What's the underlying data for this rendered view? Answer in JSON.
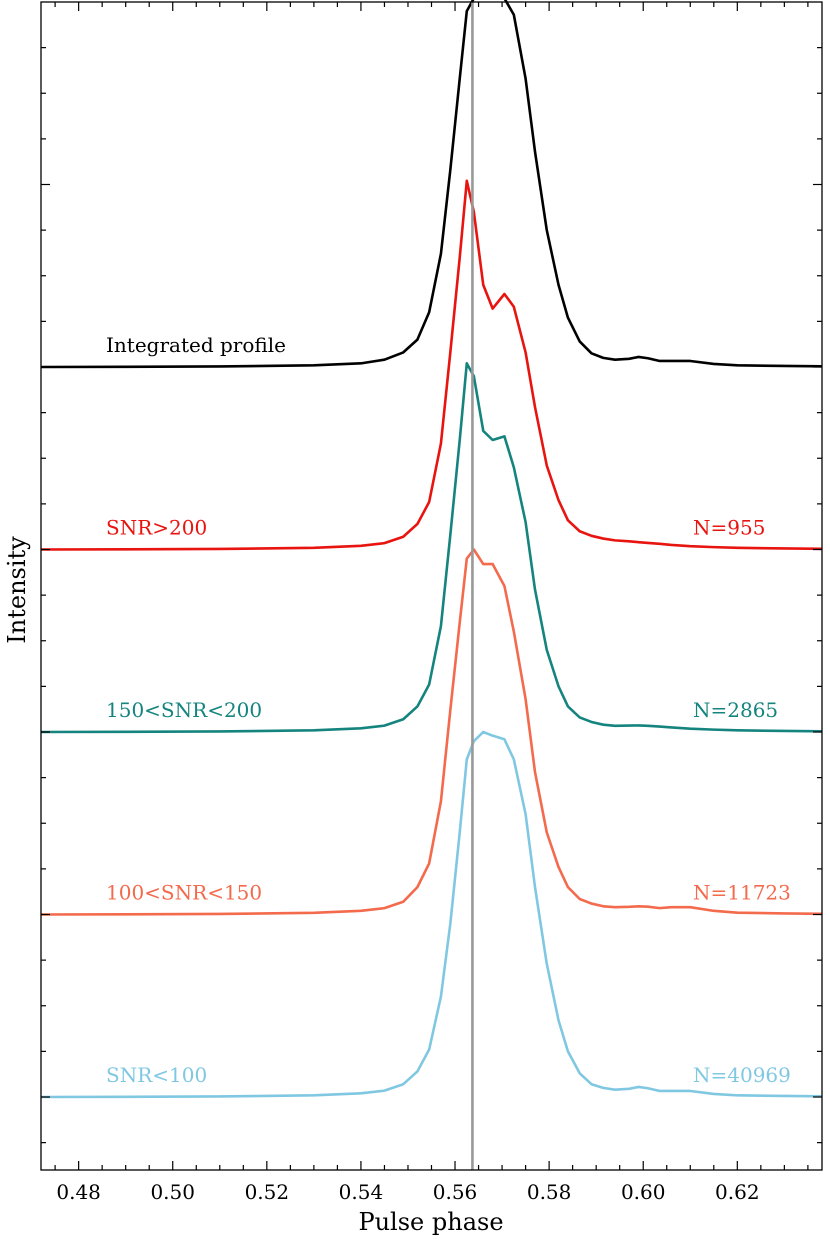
{
  "chart_data": {
    "type": "line",
    "title": "",
    "xlabel": "Pulse phase",
    "ylabel": "Intensity",
    "xlim": [
      0.472,
      0.638
    ],
    "xticks": [
      0.48,
      0.5,
      0.52,
      0.54,
      0.56,
      0.58,
      0.6,
      0.62
    ],
    "xtick_labels": [
      "0.48",
      "0.50",
      "0.52",
      "0.54",
      "0.56",
      "0.58",
      "0.60",
      "0.62"
    ],
    "ylim": [
      -0.4,
      6.0
    ],
    "grid": false,
    "reference_line": {
      "x": 0.5637,
      "color": "#999999"
    },
    "series": [
      {
        "name": "Integrated profile",
        "count_label": "",
        "color": "#000000",
        "offset": 4,
        "x": [
          0.472,
          0.49,
          0.51,
          0.53,
          0.54,
          0.545,
          0.549,
          0.552,
          0.5545,
          0.557,
          0.559,
          0.561,
          0.5625,
          0.564,
          0.566,
          0.568,
          0.5705,
          0.5725,
          0.575,
          0.577,
          0.5795,
          0.582,
          0.584,
          0.5865,
          0.589,
          0.5915,
          0.594,
          0.597,
          0.599,
          0.601,
          0.6035,
          0.606,
          0.61,
          0.615,
          0.62,
          0.63,
          0.638
        ],
        "values": [
          0,
          0.001,
          0.003,
          0.009,
          0.02,
          0.04,
          0.08,
          0.15,
          0.3,
          0.62,
          1.08,
          1.58,
          1.95,
          2.02,
          2.06,
          2.04,
          2.02,
          1.93,
          1.58,
          1.18,
          0.75,
          0.45,
          0.27,
          0.14,
          0.075,
          0.05,
          0.04,
          0.045,
          0.055,
          0.048,
          0.033,
          0.033,
          0.033,
          0.017,
          0.009,
          0.006,
          0.004
        ]
      },
      {
        "name": "SNR>200",
        "count_label": "N=955",
        "color": "#e8140f",
        "offset": 3,
        "x": [
          0.472,
          0.49,
          0.51,
          0.53,
          0.54,
          0.545,
          0.549,
          0.552,
          0.5545,
          0.557,
          0.559,
          0.561,
          0.5625,
          0.564,
          0.566,
          0.568,
          0.5705,
          0.5725,
          0.575,
          0.577,
          0.5795,
          0.582,
          0.584,
          0.5865,
          0.589,
          0.5915,
          0.594,
          0.597,
          0.599,
          0.601,
          0.6035,
          0.606,
          0.61,
          0.615,
          0.62,
          0.63,
          0.638
        ],
        "values": [
          0,
          0.001,
          0.003,
          0.009,
          0.02,
          0.035,
          0.07,
          0.14,
          0.26,
          0.58,
          1.08,
          1.6,
          2.02,
          1.85,
          1.45,
          1.32,
          1.4,
          1.33,
          1.08,
          0.78,
          0.46,
          0.27,
          0.16,
          0.1,
          0.075,
          0.06,
          0.05,
          0.045,
          0.04,
          0.036,
          0.031,
          0.025,
          0.018,
          0.013,
          0.009,
          0.006,
          0.004
        ]
      },
      {
        "name": "150<SNR<200",
        "count_label": "N=2865",
        "color": "#15847e",
        "offset": 2,
        "x": [
          0.472,
          0.49,
          0.51,
          0.53,
          0.54,
          0.545,
          0.549,
          0.552,
          0.5545,
          0.557,
          0.559,
          0.561,
          0.5625,
          0.564,
          0.566,
          0.568,
          0.5705,
          0.5725,
          0.575,
          0.577,
          0.5795,
          0.582,
          0.584,
          0.5865,
          0.589,
          0.5915,
          0.594,
          0.597,
          0.599,
          0.601,
          0.6035,
          0.606,
          0.61,
          0.615,
          0.62,
          0.63,
          0.638
        ],
        "values": [
          0,
          0.001,
          0.003,
          0.009,
          0.02,
          0.035,
          0.07,
          0.14,
          0.26,
          0.58,
          1.08,
          1.6,
          2.02,
          1.95,
          1.65,
          1.6,
          1.62,
          1.45,
          1.15,
          0.78,
          0.45,
          0.25,
          0.14,
          0.08,
          0.055,
          0.04,
          0.034,
          0.035,
          0.036,
          0.034,
          0.03,
          0.025,
          0.018,
          0.013,
          0.009,
          0.006,
          0.004
        ]
      },
      {
        "name": "100<SNR<150",
        "count_label": "N=11723",
        "color": "#f36a4c",
        "offset": 1,
        "x": [
          0.472,
          0.49,
          0.51,
          0.53,
          0.54,
          0.545,
          0.549,
          0.552,
          0.5545,
          0.557,
          0.559,
          0.561,
          0.5625,
          0.564,
          0.566,
          0.568,
          0.5705,
          0.5725,
          0.575,
          0.577,
          0.5795,
          0.582,
          0.584,
          0.5865,
          0.589,
          0.5915,
          0.594,
          0.597,
          0.599,
          0.601,
          0.6035,
          0.606,
          0.61,
          0.615,
          0.62,
          0.63,
          0.638
        ],
        "values": [
          0,
          0.001,
          0.003,
          0.009,
          0.02,
          0.035,
          0.07,
          0.15,
          0.28,
          0.62,
          1.12,
          1.6,
          1.95,
          2.0,
          1.92,
          1.92,
          1.8,
          1.55,
          1.18,
          0.78,
          0.45,
          0.26,
          0.15,
          0.085,
          0.06,
          0.045,
          0.04,
          0.042,
          0.045,
          0.043,
          0.035,
          0.04,
          0.04,
          0.02,
          0.01,
          0.006,
          0.004
        ]
      },
      {
        "name": "SNR<100",
        "count_label": "N=40969",
        "color": "#80c8e2",
        "offset": 0,
        "x": [
          0.472,
          0.49,
          0.51,
          0.53,
          0.54,
          0.545,
          0.549,
          0.552,
          0.5545,
          0.557,
          0.559,
          0.561,
          0.5625,
          0.564,
          0.566,
          0.568,
          0.5705,
          0.5725,
          0.575,
          0.577,
          0.5795,
          0.582,
          0.584,
          0.5865,
          0.589,
          0.5915,
          0.594,
          0.597,
          0.599,
          0.601,
          0.6035,
          0.606,
          0.61,
          0.615,
          0.62,
          0.63,
          0.638
        ],
        "values": [
          0,
          0.001,
          0.003,
          0.009,
          0.02,
          0.035,
          0.07,
          0.14,
          0.26,
          0.55,
          0.95,
          1.45,
          1.85,
          1.95,
          2.0,
          1.98,
          1.96,
          1.85,
          1.55,
          1.15,
          0.73,
          0.42,
          0.25,
          0.13,
          0.07,
          0.05,
          0.04,
          0.045,
          0.055,
          0.048,
          0.033,
          0.033,
          0.033,
          0.017,
          0.009,
          0.006,
          0.004
        ]
      }
    ]
  }
}
